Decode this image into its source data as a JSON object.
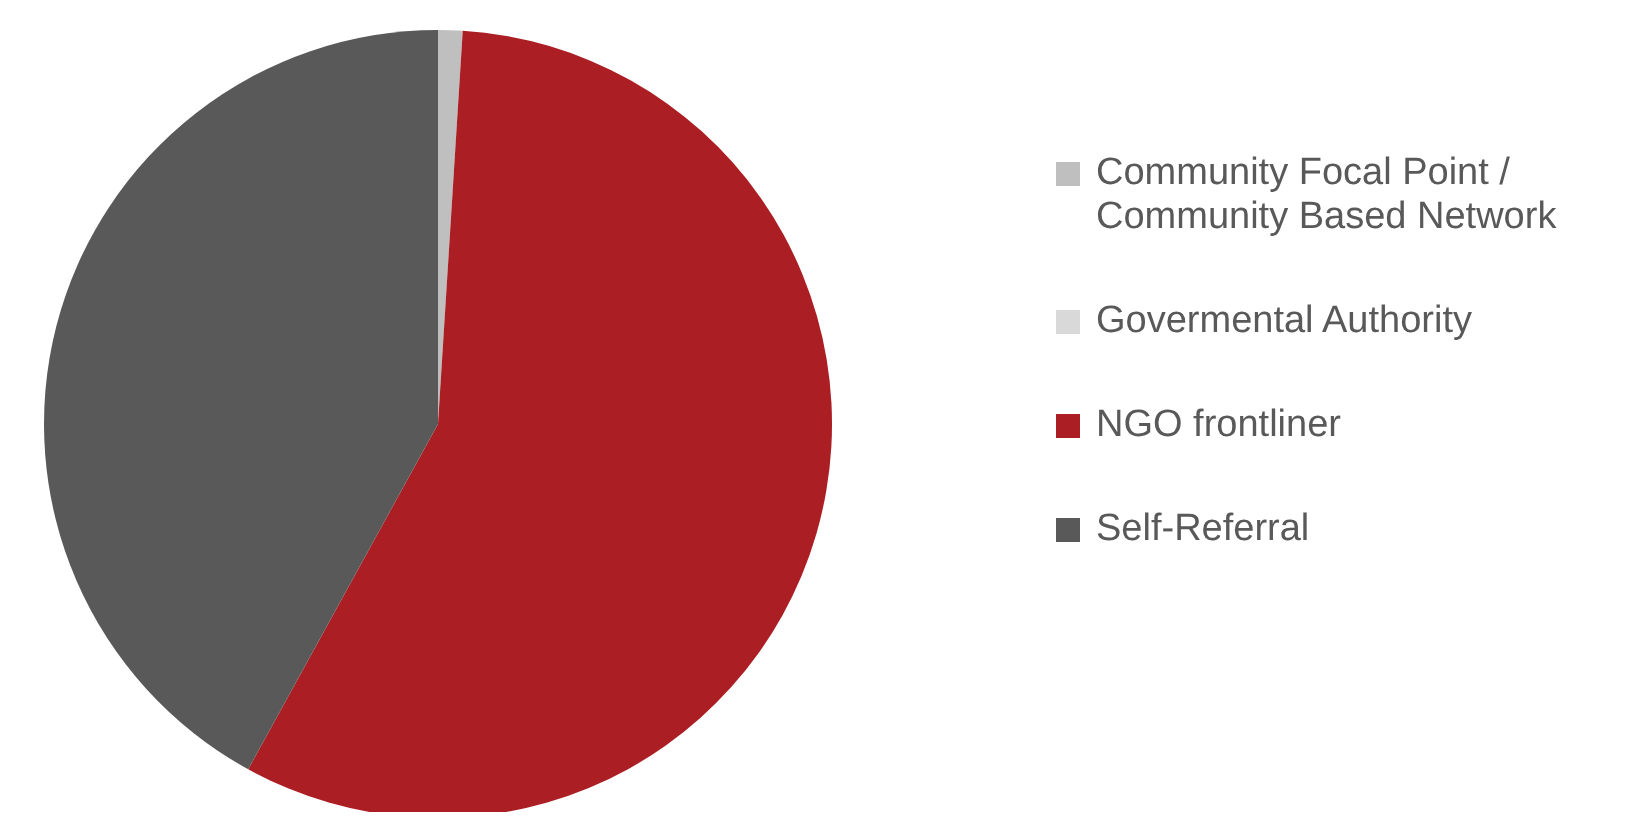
{
  "chart_data": {
    "type": "pie",
    "categories": [
      "Community Focal Point / Community Based Network",
      "Govermental Authority",
      "NGO frontliner",
      "Self-Referral"
    ],
    "values": [
      1,
      0,
      57,
      42
    ],
    "colors": [
      "#bfbfbf",
      "#d9d9d9",
      "#ab1e23",
      "#595959"
    ],
    "legend": "right"
  }
}
